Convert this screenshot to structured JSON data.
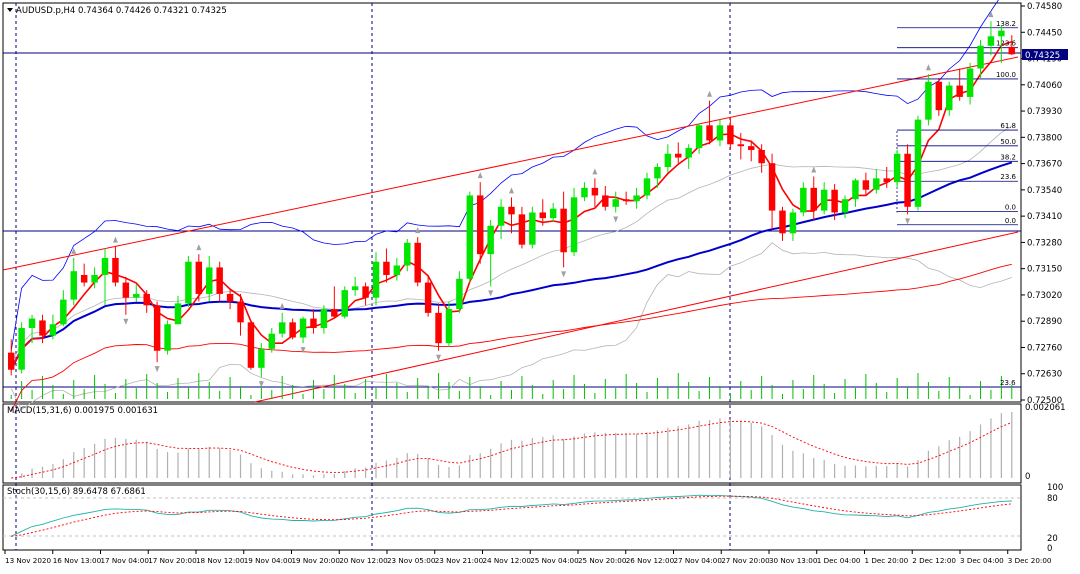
{
  "colors": {
    "bull": "#00e600",
    "bear": "#ff0000",
    "ma_fast": "#ff0000",
    "ma_mid": "#0000cc",
    "bollinger": "#0000ff",
    "envelope": "#b4b4b4",
    "channel": "#ff0000",
    "grid": "#000080",
    "volume": "#00c000",
    "macd_hist": "#b0b0b0",
    "macd_signal": "#ff0000",
    "stoch_main": "#20b2aa",
    "stoch_signal": "#ff0000",
    "price_tag_bg": "#000080"
  },
  "main": {
    "title": "AUDUSD.p,H4  0.74364 0.74426 0.74321 0.74325",
    "current_price": "0.74325",
    "price_ticks": [
      "0.74580",
      "0.74450",
      "0.74190",
      "0.74060",
      "0.73930",
      "0.73800",
      "0.73670",
      "0.73540",
      "0.73410",
      "0.73280",
      "0.73150",
      "0.73020",
      "0.72890",
      "0.72760",
      "0.72630",
      "0.72500"
    ],
    "fib_levels": [
      {
        "label": "138.2",
        "price": 0.74465
      },
      {
        "label": "123.6",
        "price": 0.7436
      },
      {
        "label": "100.0",
        "price": 0.74195
      },
      {
        "label": "61.8",
        "price": 0.73925
      },
      {
        "label": "50.0",
        "price": 0.73842
      },
      {
        "label": "38.2",
        "price": 0.7376
      },
      {
        "label": "23.6",
        "price": 0.73655
      },
      {
        "label": "0.0",
        "price": 0.73495
      },
      {
        "label": "0.0",
        "price": 0.73425
      }
    ],
    "volume_label": "23.6"
  },
  "macd": {
    "title": "MACD(15,31,6) 0.001975 0.001631",
    "ticks": [
      "0.002061",
      "0"
    ]
  },
  "stoch": {
    "title": "Stoch(30,15,6) 89.6478 67.6861",
    "ticks": [
      "100",
      "80",
      "20",
      "0"
    ]
  },
  "time_labels": [
    "13 Nov 2020",
    "16 Nov 13:00",
    "17 Nov 04:00",
    "17 Nov 20:00",
    "18 Nov 12:00",
    "19 Nov 04:00",
    "19 Nov 20:00",
    "20 Nov 12:00",
    "23 Nov 05:00",
    "23 Nov 21:00",
    "24 Nov 12:00",
    "25 Nov 04:00",
    "25 Nov 20:00",
    "26 Nov 12:00",
    "27 Nov 04:00",
    "27 Nov 20:00",
    "30 Nov 13:00",
    "1 Dec 04:00",
    "1 Dec 20:00",
    "2 Dec 12:00",
    "3 Dec 04:00",
    "3 Dec 20:00"
  ],
  "chart_data": [
    {
      "type": "candlestick",
      "symbol": "AUDUSD.p",
      "timeframe": "H4",
      "ohlc_label": [
        0.74364,
        0.74426,
        0.74321,
        0.74325
      ],
      "ylim": [
        0.725,
        0.7458
      ],
      "candles": [
        [
          0.7275,
          0.7282,
          0.7263,
          0.7266
        ],
        [
          0.7266,
          0.7291,
          0.7264,
          0.7288
        ],
        [
          0.7288,
          0.7295,
          0.728,
          0.7293
        ],
        [
          0.7292,
          0.7295,
          0.728,
          0.7284
        ],
        [
          0.7284,
          0.7295,
          0.7282,
          0.729
        ],
        [
          0.729,
          0.7308,
          0.7289,
          0.7303
        ],
        [
          0.7303,
          0.7325,
          0.73,
          0.7318
        ],
        [
          0.7316,
          0.7322,
          0.731,
          0.7312
        ],
        [
          0.7312,
          0.732,
          0.7309,
          0.7316
        ],
        [
          0.7316,
          0.733,
          0.73,
          0.7325
        ],
        [
          0.7325,
          0.7331,
          0.731,
          0.7312
        ],
        [
          0.7312,
          0.7315,
          0.7295,
          0.7304
        ],
        [
          0.7304,
          0.7311,
          0.7302,
          0.7306
        ],
        [
          0.7306,
          0.7308,
          0.7296,
          0.73
        ],
        [
          0.73,
          0.7302,
          0.727,
          0.7276
        ],
        [
          0.7276,
          0.7292,
          0.7274,
          0.729
        ],
        [
          0.729,
          0.7305,
          0.729,
          0.7301
        ],
        [
          0.7301,
          0.7326,
          0.7299,
          0.7323
        ],
        [
          0.7323,
          0.7327,
          0.7302,
          0.7306
        ],
        [
          0.7306,
          0.7326,
          0.7302,
          0.732
        ],
        [
          0.732,
          0.7323,
          0.7302,
          0.7306
        ],
        [
          0.7306,
          0.7308,
          0.7298,
          0.7302
        ],
        [
          0.7302,
          0.7306,
          0.7284,
          0.7291
        ],
        [
          0.7291,
          0.7292,
          0.7266,
          0.7267
        ],
        [
          0.7267,
          0.728,
          0.7262,
          0.7277
        ],
        [
          0.7277,
          0.7288,
          0.7275,
          0.7285
        ],
        [
          0.7285,
          0.7296,
          0.7283,
          0.7291
        ],
        [
          0.7291,
          0.7293,
          0.7282,
          0.7283
        ],
        [
          0.7283,
          0.7294,
          0.728,
          0.7293
        ],
        [
          0.7293,
          0.7298,
          0.7285,
          0.7288
        ],
        [
          0.7288,
          0.73,
          0.7285,
          0.7298
        ],
        [
          0.7298,
          0.731,
          0.7293,
          0.7294
        ],
        [
          0.7294,
          0.731,
          0.7293,
          0.7308
        ],
        [
          0.7308,
          0.7315,
          0.7305,
          0.731
        ],
        [
          0.731,
          0.7312,
          0.73,
          0.7304
        ],
        [
          0.7304,
          0.7328,
          0.73,
          0.7323
        ],
        [
          0.7323,
          0.733,
          0.7312,
          0.7316
        ],
        [
          0.7316,
          0.7325,
          0.7313,
          0.7321
        ],
        [
          0.7321,
          0.7335,
          0.7318,
          0.7333
        ],
        [
          0.7333,
          0.7336,
          0.731,
          0.7312
        ],
        [
          0.7312,
          0.7316,
          0.7294,
          0.7296
        ],
        [
          0.7296,
          0.7301,
          0.7276,
          0.728
        ],
        [
          0.728,
          0.7302,
          0.7278,
          0.7298
        ],
        [
          0.7298,
          0.7318,
          0.7296,
          0.7314
        ],
        [
          0.7314,
          0.736,
          0.7312,
          0.7358
        ],
        [
          0.7358,
          0.7365,
          0.7322,
          0.7327
        ],
        [
          0.7327,
          0.7345,
          0.731,
          0.7342
        ],
        [
          0.7342,
          0.7356,
          0.7335,
          0.7352
        ],
        [
          0.7352,
          0.7357,
          0.7338,
          0.7348
        ],
        [
          0.7348,
          0.7352,
          0.733,
          0.7332
        ],
        [
          0.7332,
          0.7352,
          0.733,
          0.7349
        ],
        [
          0.7349,
          0.7356,
          0.7342,
          0.7346
        ],
        [
          0.7346,
          0.7354,
          0.7344,
          0.7351
        ],
        [
          0.7351,
          0.736,
          0.732,
          0.7328
        ],
        [
          0.7328,
          0.7362,
          0.7326,
          0.7357
        ],
        [
          0.7357,
          0.7365,
          0.7355,
          0.7362
        ],
        [
          0.7362,
          0.7367,
          0.7352,
          0.7358
        ],
        [
          0.7358,
          0.7363,
          0.735,
          0.7352
        ],
        [
          0.7352,
          0.736,
          0.7349,
          0.7356
        ],
        [
          0.7356,
          0.736,
          0.7353,
          0.7355
        ],
        [
          0.7355,
          0.7362,
          0.7351,
          0.7358
        ],
        [
          0.7358,
          0.737,
          0.7356,
          0.7367
        ],
        [
          0.7367,
          0.7375,
          0.7362,
          0.7373
        ],
        [
          0.7373,
          0.7385,
          0.737,
          0.738
        ],
        [
          0.738,
          0.7386,
          0.7375,
          0.7378
        ],
        [
          0.7378,
          0.7385,
          0.7372,
          0.7383
        ],
        [
          0.7383,
          0.7396,
          0.738,
          0.7395
        ],
        [
          0.7395,
          0.7408,
          0.7385,
          0.7387
        ],
        [
          0.7387,
          0.7398,
          0.7384,
          0.7395
        ],
        [
          0.7395,
          0.7399,
          0.7382,
          0.7385
        ],
        [
          0.7385,
          0.7391,
          0.7377,
          0.7384
        ],
        [
          0.7384,
          0.7387,
          0.7376,
          0.7382
        ],
        [
          0.7382,
          0.7385,
          0.737,
          0.7375
        ],
        [
          0.7375,
          0.738,
          0.734,
          0.735
        ],
        [
          0.735,
          0.7352,
          0.7334,
          0.7338
        ],
        [
          0.7338,
          0.7351,
          0.7334,
          0.7349
        ],
        [
          0.7349,
          0.7365,
          0.7347,
          0.7362
        ],
        [
          0.7362,
          0.7368,
          0.7345,
          0.735
        ],
        [
          0.735,
          0.7365,
          0.7348,
          0.7361
        ],
        [
          0.7361,
          0.7364,
          0.7345,
          0.7349
        ],
        [
          0.7349,
          0.7358,
          0.7346,
          0.7356
        ],
        [
          0.7356,
          0.7367,
          0.7352,
          0.7366
        ],
        [
          0.7366,
          0.737,
          0.7358,
          0.7361
        ],
        [
          0.7361,
          0.7372,
          0.7359,
          0.7367
        ],
        [
          0.7367,
          0.7373,
          0.7362,
          0.7365
        ],
        [
          0.7365,
          0.7382,
          0.7362,
          0.738
        ],
        [
          0.738,
          0.7385,
          0.7348,
          0.7352
        ],
        [
          0.7352,
          0.74,
          0.735,
          0.7398
        ],
        [
          0.7398,
          0.7422,
          0.7395,
          0.7418
        ],
        [
          0.7418,
          0.742,
          0.74,
          0.7403
        ],
        [
          0.7403,
          0.7418,
          0.74,
          0.7416
        ],
        [
          0.7416,
          0.7425,
          0.7408,
          0.741
        ],
        [
          0.741,
          0.7428,
          0.7406,
          0.7425
        ],
        [
          0.7425,
          0.744,
          0.742,
          0.7437
        ],
        [
          0.7437,
          0.745,
          0.7432,
          0.7442
        ],
        [
          0.7442,
          0.7448,
          0.7428,
          0.7445
        ],
        [
          0.74364,
          0.74426,
          0.74321,
          0.74325
        ]
      ]
    },
    {
      "type": "bar",
      "name": "MACD(15,31,6)",
      "values": [
        0.001975,
        0.001631
      ],
      "ylim": [
        0,
        0.002061
      ]
    },
    {
      "type": "line",
      "name": "Stoch(30,15,6)",
      "values": [
        89.6478,
        67.6861
      ],
      "levels": [
        20,
        80
      ],
      "ylim": [
        0,
        100
      ]
    }
  ]
}
